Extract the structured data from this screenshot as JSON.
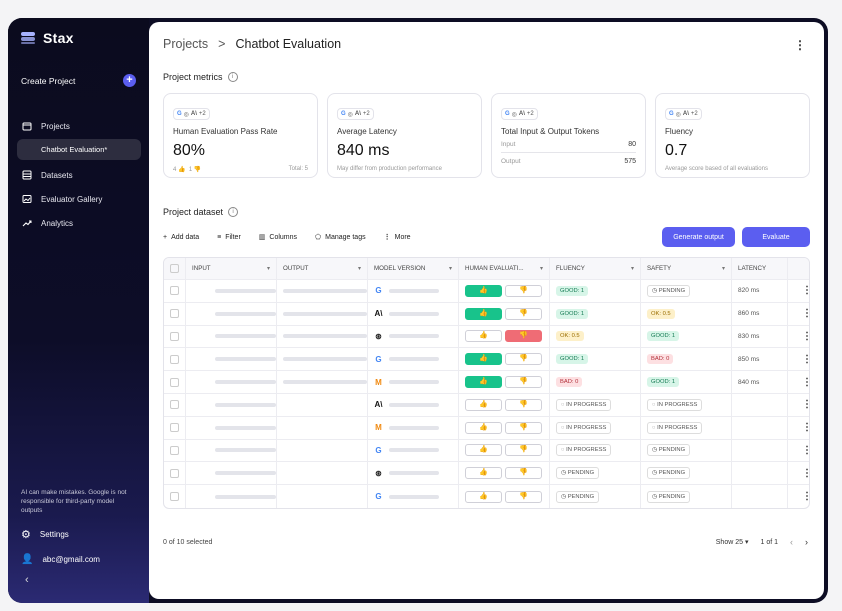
{
  "sidebar": {
    "brand": "Stax",
    "create_label": "Create Project",
    "items": [
      {
        "label": "Projects",
        "icon": "folder-icon"
      },
      {
        "label": "Chatbot Evaluation*",
        "icon": ""
      },
      {
        "label": "Datasets",
        "icon": "dataset-icon"
      },
      {
        "label": "Evaluator Gallery",
        "icon": "gallery-icon"
      },
      {
        "label": "Analytics",
        "icon": "trend-icon"
      }
    ],
    "disclaimer": "AI can make mistakes. Google is not responsible for third-party model outputs",
    "settings_label": "Settings",
    "account": "abc@gmail.com"
  },
  "header": {
    "breadcrumb_root": "Projects",
    "breadcrumb_sep": ">",
    "breadcrumb_current": "Chatbot Evaluation"
  },
  "metrics": {
    "title": "Project metrics",
    "cards": [
      {
        "chip": "+2",
        "title": "Human Evaluation Pass Rate",
        "value": "80%",
        "up": "4",
        "down": "1",
        "note": "Total: 5"
      },
      {
        "chip": "+2",
        "title": "Average Latency",
        "value": "840 ms",
        "note": "May differ from production performance"
      },
      {
        "chip": "+2",
        "title": "Total Input & Output Tokens",
        "input_label": "Input",
        "input_value": "80",
        "output_label": "Output",
        "output_value": "575"
      },
      {
        "chip": "+2",
        "title": "Fluency",
        "value": "0.7",
        "note": "Average score based of all evaluations"
      }
    ]
  },
  "dataset": {
    "title": "Project dataset",
    "tools": [
      "Add data",
      "Filter",
      "Columns",
      "Manage tags",
      "More"
    ],
    "generate_label": "Generate output",
    "evaluate_label": "Evaluate",
    "columns": [
      "INPUT",
      "OUTPUT",
      "MODEL VERSION",
      "HUMAN EVALUATI...",
      "FLUENCY",
      "SAFETY",
      "LATENCY"
    ],
    "rows": [
      {
        "model": "google",
        "has_output": true,
        "vote": "up",
        "fluency": "GOOD: 1",
        "fluency_type": "good",
        "safety": "PENDING",
        "safety_type": "pend",
        "latency": "820 ms"
      },
      {
        "model": "anthropic",
        "has_output": true,
        "vote": "up",
        "fluency": "GOOD: 1",
        "fluency_type": "good",
        "safety": "OK: 0.5",
        "safety_type": "ok",
        "latency": "860 ms"
      },
      {
        "model": "openai",
        "has_output": true,
        "vote": "down",
        "fluency": "OK: 0.5",
        "fluency_type": "ok",
        "safety": "GOOD: 1",
        "safety_type": "good",
        "latency": "830 ms"
      },
      {
        "model": "google",
        "has_output": true,
        "vote": "up",
        "fluency": "GOOD: 1",
        "fluency_type": "good",
        "safety": "BAD: 0",
        "safety_type": "bad",
        "latency": "850 ms"
      },
      {
        "model": "mistral",
        "has_output": true,
        "vote": "up",
        "fluency": "BAD: 0",
        "fluency_type": "bad",
        "safety": "GOOD: 1",
        "safety_type": "good",
        "latency": "840 ms"
      },
      {
        "model": "anthropic",
        "has_output": false,
        "vote": "none",
        "fluency": "IN PROGRESS",
        "fluency_type": "prog",
        "safety": "IN PROGRESS",
        "safety_type": "prog",
        "latency": ""
      },
      {
        "model": "mistral",
        "has_output": false,
        "vote": "none",
        "fluency": "IN PROGRESS",
        "fluency_type": "prog",
        "safety": "IN PROGRESS",
        "safety_type": "prog",
        "latency": ""
      },
      {
        "model": "google",
        "has_output": false,
        "vote": "none",
        "fluency": "IN PROGRESS",
        "fluency_type": "prog",
        "safety": "PENDING",
        "safety_type": "pend",
        "latency": ""
      },
      {
        "model": "openai",
        "has_output": false,
        "vote": "none",
        "fluency": "PENDING",
        "fluency_type": "pend",
        "safety": "PENDING",
        "safety_type": "pend",
        "latency": ""
      },
      {
        "model": "google",
        "has_output": false,
        "vote": "none",
        "fluency": "PENDING",
        "fluency_type": "pend",
        "safety": "PENDING",
        "safety_type": "pend",
        "latency": ""
      }
    ],
    "selected_text": "0 of 10 selected",
    "show_label": "Show 25",
    "page_text": "1 of 1"
  }
}
